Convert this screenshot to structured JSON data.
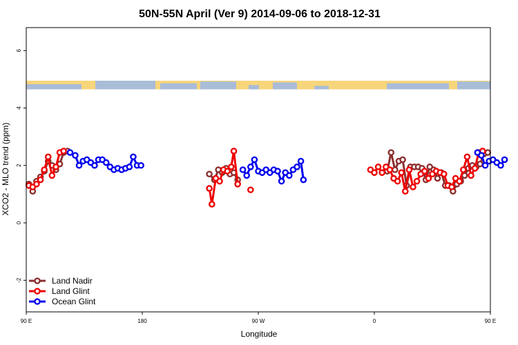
{
  "chart_data": {
    "type": "line",
    "title": "50N-55N April (Ver 9)   2014-09-06 to 2018-12-31",
    "xlabel": "Longitude",
    "ylabel": "XCO2 - MLO trend (ppm)",
    "xlim": [
      90,
      450
    ],
    "ylim": [
      -3.1,
      6.8
    ],
    "x_ticks": [
      {
        "value": 90,
        "label": "90 E"
      },
      {
        "value": 180,
        "label": "180"
      },
      {
        "value": 270,
        "label": "90 W"
      },
      {
        "value": 360,
        "label": "0"
      },
      {
        "value": 450,
        "label": "90 E"
      },
      {
        "value": 540,
        "label": "180"
      }
    ],
    "y_ticks": [
      {
        "value": -2,
        "label": "-2"
      },
      {
        "value": 0,
        "label": "0"
      },
      {
        "value": 2,
        "label": "2"
      },
      {
        "value": 4,
        "label": "4"
      },
      {
        "value": 6,
        "label": "6"
      }
    ],
    "x_tick_note": "",
    "legend_position": "bottom-left",
    "land_ocean_strip": {
      "y_bottom": 4.65,
      "y_top": 4.95,
      "land_color": "#f7d57a",
      "ocean_color": "#a9bcd8"
    },
    "series": [
      {
        "name": "Land Nadir",
        "color": "#8b2f2f",
        "segments": [
          [
            [
              92,
              1.35
            ],
            [
              95,
              1.1
            ],
            [
              98,
              1.45
            ],
            [
              101,
              1.6
            ],
            [
              104,
              1.8
            ],
            [
              107,
              2.15
            ],
            [
              110,
              2.0
            ],
            [
              113,
              1.85
            ],
            [
              116,
              2.05
            ],
            [
              119,
              2.45
            ],
            [
              122,
              2.5
            ]
          ],
          [
            [
              232,
              1.7
            ],
            [
              236,
              1.5
            ],
            [
              239,
              1.85
            ],
            [
              242,
              1.75
            ],
            [
              245,
              1.9
            ],
            [
              248,
              1.7
            ],
            [
              251,
              1.75
            ],
            [
              254,
              1.5
            ]
          ],
          [
            [
              370,
              1.8
            ],
            [
              373,
              2.45
            ],
            [
              376,
              1.85
            ],
            [
              379,
              2.15
            ],
            [
              382,
              2.2
            ],
            [
              385,
              1.3
            ],
            [
              388,
              1.95
            ],
            [
              391,
              1.95
            ],
            [
              394,
              1.95
            ],
            [
              397,
              1.9
            ],
            [
              400,
              1.5
            ],
            [
              403,
              1.95
            ],
            [
              406,
              1.85
            ],
            [
              409,
              1.55
            ],
            [
              412,
              1.75
            ],
            [
              415,
              1.3
            ],
            [
              418,
              1.3
            ],
            [
              421,
              1.1
            ],
            [
              424,
              1.35
            ],
            [
              427,
              1.45
            ],
            [
              430,
              1.65
            ],
            [
              433,
              1.9
            ],
            [
              436,
              2.0
            ],
            [
              439,
              1.95
            ],
            [
              442,
              2.05
            ],
            [
              445,
              2.4
            ],
            [
              448,
              2.45
            ]
          ]
        ]
      },
      {
        "name": "Land Glint",
        "color": "#ee0000",
        "segments": [
          [
            [
              92,
              1.3
            ],
            [
              95,
              1.25
            ],
            [
              98,
              1.35
            ],
            [
              101,
              1.5
            ],
            [
              104,
              1.85
            ],
            [
              107,
              2.3
            ],
            [
              110,
              1.65
            ],
            [
              113,
              1.95
            ],
            [
              116,
              2.45
            ],
            [
              119,
              2.5
            ]
          ],
          [
            [
              232,
              1.2
            ],
            [
              234,
              0.65
            ],
            [
              237,
              1.55
            ],
            [
              240,
              1.45
            ],
            [
              243,
              1.85
            ],
            [
              246,
              1.8
            ],
            [
              249,
              1.95
            ],
            [
              251,
              2.5
            ],
            [
              254,
              1.35
            ]
          ],
          [
            [
              264,
              1.15
            ]
          ],
          [
            [
              357,
              1.85
            ],
            [
              360,
              1.75
            ],
            [
              363,
              1.95
            ],
            [
              366,
              1.75
            ],
            [
              369,
              1.95
            ],
            [
              372,
              1.85
            ],
            [
              375,
              1.55
            ],
            [
              378,
              1.45
            ],
            [
              381,
              1.75
            ],
            [
              384,
              1.1
            ],
            [
              387,
              1.85
            ],
            [
              390,
              1.25
            ],
            [
              393,
              1.45
            ],
            [
              396,
              1.7
            ],
            [
              399,
              1.8
            ],
            [
              402,
              1.55
            ],
            [
              405,
              1.7
            ],
            [
              408,
              1.8
            ],
            [
              411,
              1.75
            ],
            [
              414,
              1.7
            ],
            [
              417,
              1.3
            ],
            [
              420,
              1.25
            ],
            [
              423,
              1.55
            ],
            [
              426,
              1.45
            ],
            [
              429,
              1.85
            ],
            [
              432,
              2.3
            ],
            [
              435,
              1.65
            ],
            [
              438,
              1.9
            ],
            [
              441,
              2.45
            ],
            [
              444,
              2.5
            ]
          ]
        ]
      },
      {
        "name": "Ocean Glint",
        "color": "#0000ee",
        "segments": [
          [
            [
              124,
              2.45
            ],
            [
              128,
              2.35
            ],
            [
              131,
              2.0
            ],
            [
              134,
              2.15
            ],
            [
              137,
              2.2
            ],
            [
              140,
              2.1
            ],
            [
              143,
              2.0
            ],
            [
              146,
              2.2
            ],
            [
              149,
              2.2
            ],
            [
              152,
              2.1
            ],
            [
              155,
              1.95
            ],
            [
              158,
              1.85
            ],
            [
              161,
              1.9
            ],
            [
              164,
              1.85
            ],
            [
              167,
              1.9
            ],
            [
              170,
              1.95
            ],
            [
              173,
              2.3
            ],
            [
              176,
              2.0
            ],
            [
              179,
              2.0
            ]
          ],
          [
            [
              258,
              1.85
            ],
            [
              261,
              1.65
            ],
            [
              264,
              1.95
            ],
            [
              267,
              2.2
            ],
            [
              270,
              1.8
            ],
            [
              273,
              1.75
            ],
            [
              276,
              1.85
            ],
            [
              279,
              1.75
            ],
            [
              282,
              1.85
            ],
            [
              285,
              1.8
            ],
            [
              288,
              1.45
            ],
            [
              291,
              1.75
            ],
            [
              294,
              1.65
            ],
            [
              297,
              1.85
            ],
            [
              300,
              1.95
            ],
            [
              303,
              2.15
            ],
            [
              305,
              1.5
            ]
          ],
          [
            [
              440,
              2.45
            ],
            [
              443,
              2.35
            ],
            [
              446,
              2.0
            ],
            [
              449,
              2.15
            ],
            [
              452,
              2.2
            ],
            [
              455,
              2.1
            ],
            [
              458,
              2.0
            ],
            [
              461,
              2.2
            ]
          ]
        ]
      }
    ]
  }
}
